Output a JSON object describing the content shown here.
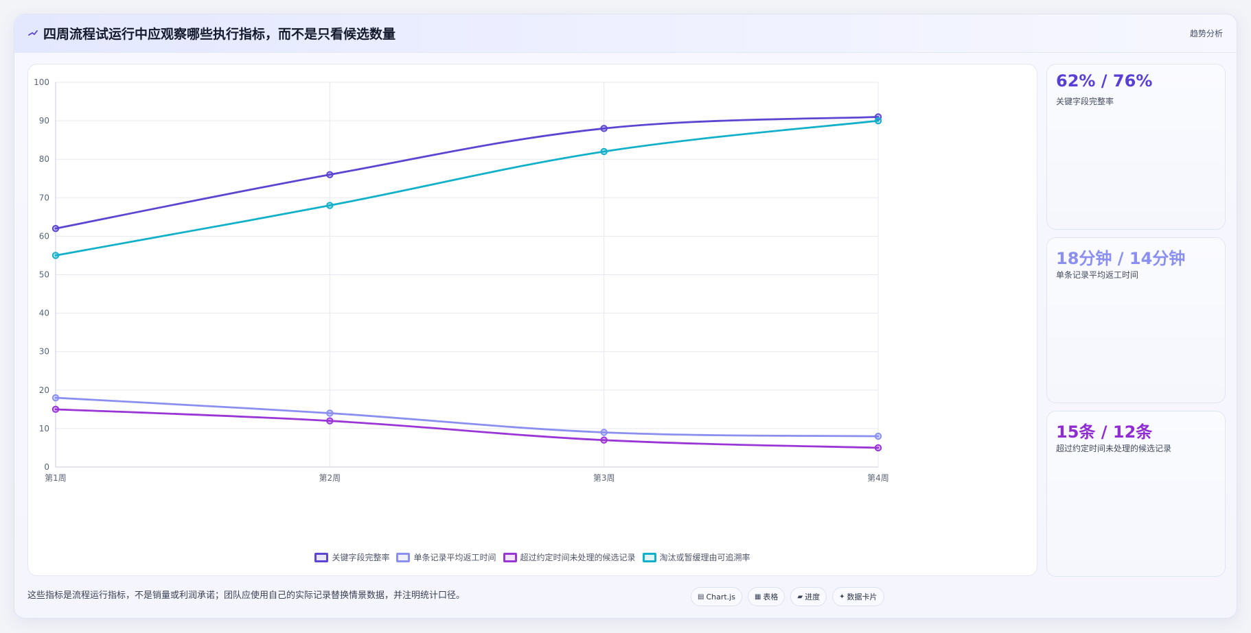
{
  "header": {
    "title": "四周流程试运行中应观察哪些执行指标，而不是只看候选数量",
    "tag": "趋势分析"
  },
  "chart_data": {
    "type": "line",
    "categories": [
      "第1周",
      "第2周",
      "第3周",
      "第4周"
    ],
    "ylim": [
      0,
      100
    ],
    "yticks": [
      0,
      10,
      20,
      30,
      40,
      50,
      60,
      70,
      80,
      90,
      100
    ],
    "grid": true,
    "legend_position": "bottom",
    "series": [
      {
        "name": "关键字段完整率",
        "values": [
          62,
          76,
          88,
          91
        ],
        "color": "#5b45d1"
      },
      {
        "name": "单条记录平均返工时间",
        "values": [
          18,
          14,
          9,
          8
        ],
        "color": "#8a8ff0"
      },
      {
        "name": "超过约定时间未处理的候选记录",
        "values": [
          15,
          12,
          7,
          5
        ],
        "color": "#9a35d6"
      },
      {
        "name": "淘汰或暂缓理由可追溯率",
        "values": [
          55,
          68,
          82,
          90
        ],
        "color": "#13b0c9"
      }
    ]
  },
  "kpis": [
    {
      "value": "62% / 76%",
      "label": "关键字段完整率",
      "color": "#5a3fd4"
    },
    {
      "value": "18分钟 / 14分钟",
      "label": "单条记录平均返工时间",
      "color": "#8a8ff0"
    },
    {
      "value": "15条 / 12条",
      "label": "超过约定时间未处理的候选记录",
      "color": "#8f2dd2"
    }
  ],
  "footnote": "这些指标是流程运行指标，不是销量或利润承诺；团队应使用自己的实际记录替换情景数据，并注明统计口径。",
  "pills": [
    {
      "icon": "chart-icon",
      "glyph": "▤",
      "label": "Chart.js"
    },
    {
      "icon": "table-icon",
      "glyph": "▦",
      "label": "表格"
    },
    {
      "icon": "progress-icon",
      "glyph": "▰",
      "label": "进度"
    },
    {
      "icon": "sparkle-icon",
      "glyph": "✦",
      "label": "数据卡片"
    }
  ]
}
